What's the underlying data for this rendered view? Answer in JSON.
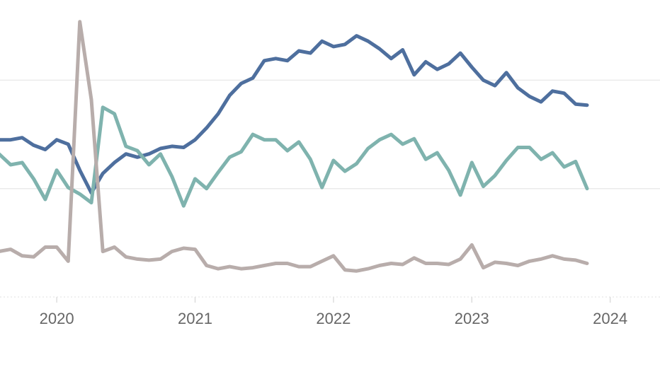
{
  "chart_data": {
    "type": "line",
    "x": [
      2019.583,
      2019.667,
      2019.75,
      2019.833,
      2019.917,
      2020,
      2020.083,
      2020.167,
      2020.25,
      2020.333,
      2020.417,
      2020.5,
      2020.583,
      2020.667,
      2020.75,
      2020.833,
      2020.917,
      2021,
      2021.083,
      2021.167,
      2021.25,
      2021.333,
      2021.417,
      2021.5,
      2021.583,
      2021.667,
      2021.75,
      2021.833,
      2021.917,
      2022,
      2022.083,
      2022.167,
      2022.25,
      2022.333,
      2022.417,
      2022.5,
      2022.583,
      2022.667,
      2022.75,
      2022.833,
      2022.917,
      2023,
      2023.083,
      2023.167,
      2023.25,
      2023.333,
      2023.417,
      2023.5,
      2023.583,
      2023.667,
      2023.75,
      2023.833
    ],
    "series": [
      {
        "color": "#4e6f9e",
        "values": [
          1.45,
          1.45,
          1.47,
          1.4,
          1.36,
          1.45,
          1.41,
          1.17,
          0.96,
          1.14,
          1.24,
          1.32,
          1.29,
          1.32,
          1.37,
          1.39,
          1.38,
          1.45,
          1.56,
          1.69,
          1.86,
          1.97,
          2.02,
          2.18,
          2.2,
          2.18,
          2.27,
          2.25,
          2.36,
          2.31,
          2.33,
          2.41,
          2.36,
          2.29,
          2.2,
          2.28,
          2.05,
          2.17,
          2.1,
          2.15,
          2.25,
          2.12,
          2.0,
          1.95,
          2.07,
          1.93,
          1.85,
          1.8,
          1.9,
          1.88,
          1.78,
          1.77
        ]
      },
      {
        "color": "#7fb3ae",
        "values": [
          1.32,
          1.22,
          1.24,
          1.09,
          0.9,
          1.17,
          1.01,
          0.95,
          0.87,
          1.75,
          1.69,
          1.39,
          1.35,
          1.22,
          1.32,
          1.11,
          0.84,
          1.09,
          1.0,
          1.15,
          1.29,
          1.34,
          1.5,
          1.45,
          1.45,
          1.35,
          1.43,
          1.27,
          1.01,
          1.26,
          1.16,
          1.23,
          1.37,
          1.45,
          1.5,
          1.41,
          1.46,
          1.27,
          1.33,
          1.17,
          0.94,
          1.24,
          1.02,
          1.12,
          1.26,
          1.38,
          1.38,
          1.27,
          1.33,
          1.2,
          1.25,
          1.0
        ]
      },
      {
        "color": "#b8adab",
        "values": [
          0.42,
          0.44,
          0.38,
          0.37,
          0.46,
          0.46,
          0.33,
          2.54,
          1.82,
          0.42,
          0.46,
          0.37,
          0.35,
          0.34,
          0.35,
          0.42,
          0.45,
          0.44,
          0.29,
          0.26,
          0.28,
          0.26,
          0.27,
          0.29,
          0.31,
          0.31,
          0.28,
          0.28,
          0.33,
          0.38,
          0.25,
          0.24,
          0.26,
          0.29,
          0.31,
          0.3,
          0.36,
          0.31,
          0.31,
          0.3,
          0.35,
          0.48,
          0.27,
          0.32,
          0.31,
          0.29,
          0.33,
          0.35,
          0.38,
          0.35,
          0.34,
          0.31
        ]
      }
    ],
    "xlim": [
      2019.59,
      2024.36
    ],
    "xticks": [
      2020,
      2021,
      2022,
      2023,
      2024
    ],
    "ylim": [
      0,
      2.74
    ],
    "ygrid": [
      0,
      1,
      2
    ]
  }
}
